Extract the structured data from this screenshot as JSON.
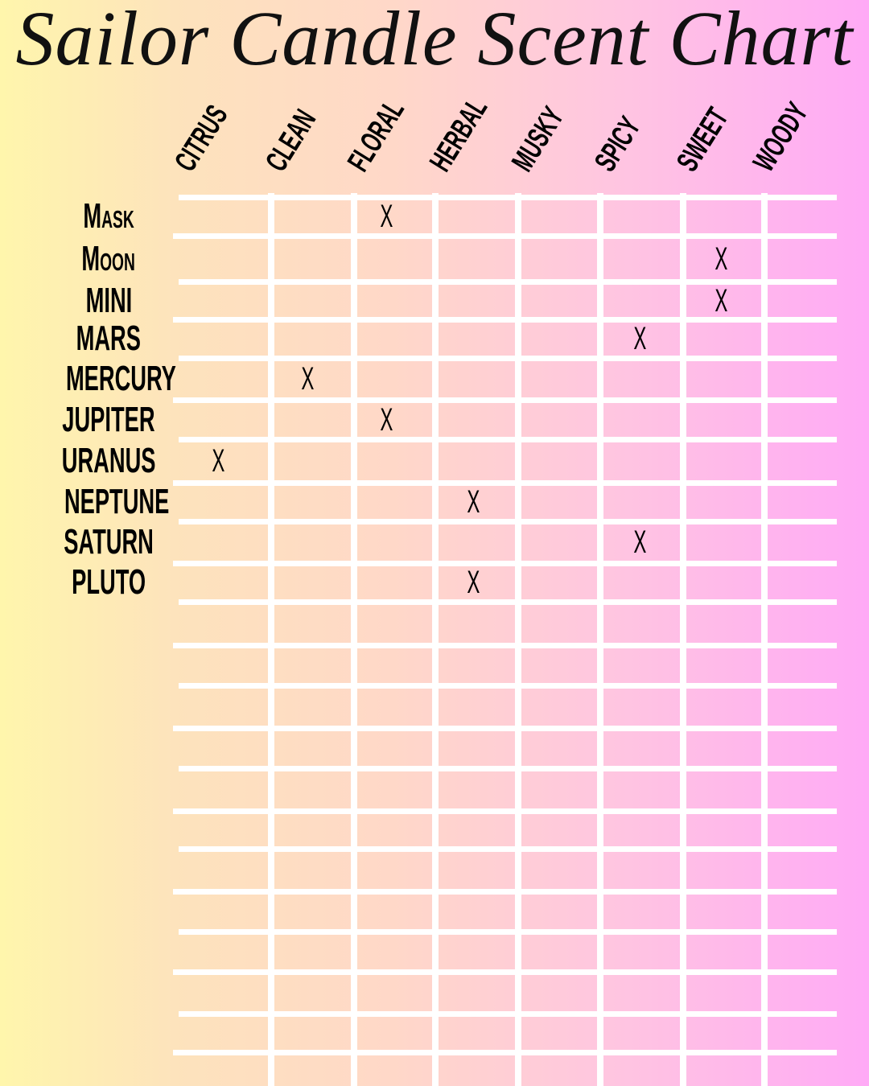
{
  "title": "Sailor Candle Scent Chart",
  "columns": [
    "CITRUS",
    "CLEAN",
    "FLORAL",
    "HERBAL",
    "MUSKY",
    "SPICY",
    "SWEET",
    "WOODY"
  ],
  "rows": [
    {
      "label": "Mask",
      "marks": [
        "FLORAL"
      ]
    },
    {
      "label": "Moon",
      "marks": [
        "SWEET"
      ]
    },
    {
      "label": "MINI",
      "marks": [
        "SWEET"
      ]
    },
    {
      "label": "MARS",
      "marks": [
        "SPICY"
      ]
    },
    {
      "label": "MERCURY",
      "marks": [
        "CLEAN"
      ]
    },
    {
      "label": "JUPITER",
      "marks": [
        "FLORAL"
      ]
    },
    {
      "label": "URANUS",
      "marks": [
        "CITRUS"
      ]
    },
    {
      "label": "NEPTUNE",
      "marks": [
        "HERBAL"
      ]
    },
    {
      "label": "SATURN",
      "marks": [
        "SPICY"
      ]
    },
    {
      "label": "PLUTO",
      "marks": [
        "HERBAL"
      ]
    }
  ],
  "mark_symbol": "X",
  "colors": {
    "gradient_left": "#fff6ac",
    "gradient_mid": "#ffd8c8",
    "gradient_right": "#ffaaf6",
    "grid": "#ffffff"
  }
}
